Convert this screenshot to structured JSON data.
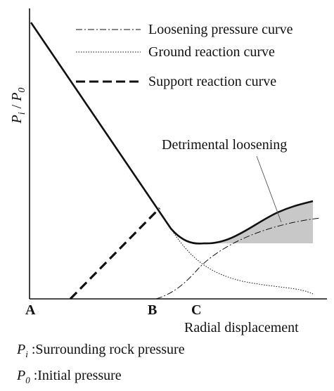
{
  "legend": {
    "loosening": "Loosening pressure curve",
    "ground": "Ground reaction curve",
    "support": "Support reaction curve"
  },
  "axes": {
    "y_label_main": "P",
    "y_label_sub1": "i",
    "y_label_sep": " / ",
    "y_label_sub2": "0",
    "x_label": "Radial displacement"
  },
  "points": {
    "A": "A",
    "B": "B",
    "C": "C"
  },
  "annotation": {
    "detrimental": "Detrimental loosening"
  },
  "notes": [
    {
      "symbol": "P",
      "sub": "i",
      "text": " :Surrounding rock pressure"
    },
    {
      "symbol": "P",
      "sub": "0",
      "text": " :Initial pressure"
    }
  ],
  "colors": {
    "line": "#111111",
    "shade": "#c8c8c8"
  }
}
